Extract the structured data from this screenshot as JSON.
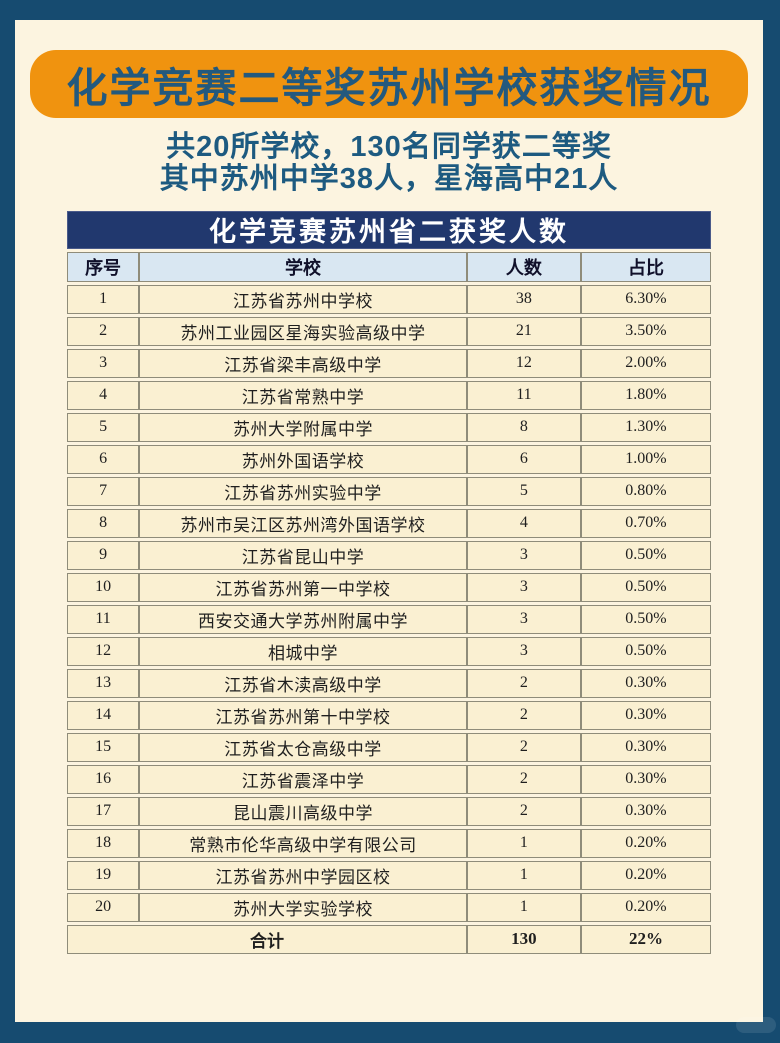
{
  "page": {
    "background_color": "#164b70",
    "card_color": "#fcf4e0",
    "accent_orange": "#f0930f",
    "headline_blue": "#23597e",
    "table_title_navy": "#21386e",
    "header_row_blue": "#d9e7f2",
    "row_cream": "#faf0d2"
  },
  "header": {
    "title": "化学竞赛二等奖苏州学校获奖情况",
    "subtitle_line1": "共20所学校，130名同学获二等奖",
    "subtitle_line2": "其中苏州中学38人，星海高中21人"
  },
  "table": {
    "title": "化学竞赛苏州省二获奖人数",
    "columns": [
      "序号",
      "学校",
      "人数",
      "占比"
    ],
    "rows": [
      [
        "1",
        "江苏省苏州中学校",
        "38",
        "6.30%"
      ],
      [
        "2",
        "苏州工业园区星海实验高级中学",
        "21",
        "3.50%"
      ],
      [
        "3",
        "江苏省梁丰高级中学",
        "12",
        "2.00%"
      ],
      [
        "4",
        "江苏省常熟中学",
        "11",
        "1.80%"
      ],
      [
        "5",
        "苏州大学附属中学",
        "8",
        "1.30%"
      ],
      [
        "6",
        "苏州外国语学校",
        "6",
        "1.00%"
      ],
      [
        "7",
        "江苏省苏州实验中学",
        "5",
        "0.80%"
      ],
      [
        "8",
        "苏州市吴江区苏州湾外国语学校",
        "4",
        "0.70%"
      ],
      [
        "9",
        "江苏省昆山中学",
        "3",
        "0.50%"
      ],
      [
        "10",
        "江苏省苏州第一中学校",
        "3",
        "0.50%"
      ],
      [
        "11",
        "西安交通大学苏州附属中学",
        "3",
        "0.50%"
      ],
      [
        "12",
        "相城中学",
        "3",
        "0.50%"
      ],
      [
        "13",
        "江苏省木渎高级中学",
        "2",
        "0.30%"
      ],
      [
        "14",
        "江苏省苏州第十中学校",
        "2",
        "0.30%"
      ],
      [
        "15",
        "江苏省太仓高级中学",
        "2",
        "0.30%"
      ],
      [
        "16",
        "江苏省震泽中学",
        "2",
        "0.30%"
      ],
      [
        "17",
        "昆山震川高级中学",
        "2",
        "0.30%"
      ],
      [
        "18",
        "常熟市伦华高级中学有限公司",
        "1",
        "0.20%"
      ],
      [
        "19",
        "江苏省苏州中学园区校",
        "1",
        "0.20%"
      ],
      [
        "20",
        "苏州大学实验学校",
        "1",
        "0.20%"
      ]
    ],
    "total_row": {
      "label": "合计",
      "count": "130",
      "percent": "22%"
    }
  },
  "chart_data": {
    "type": "table",
    "title": "化学竞赛苏州省二获奖人数",
    "categories": [
      "江苏省苏州中学校",
      "苏州工业园区星海实验高级中学",
      "江苏省梁丰高级中学",
      "江苏省常熟中学",
      "苏州大学附属中学",
      "苏州外国语学校",
      "江苏省苏州实验中学",
      "苏州市吴江区苏州湾外国语学校",
      "江苏省昆山中学",
      "江苏省苏州第一中学校",
      "西安交通大学苏州附属中学",
      "相城中学",
      "江苏省木渎高级中学",
      "江苏省苏州第十中学校",
      "江苏省太仓高级中学",
      "江苏省震泽中学",
      "昆山震川高级中学",
      "常熟市伦华高级中学有限公司",
      "江苏省苏州中学园区校",
      "苏州大学实验学校"
    ],
    "series": [
      {
        "name": "人数",
        "values": [
          38,
          21,
          12,
          11,
          8,
          6,
          5,
          4,
          3,
          3,
          3,
          3,
          2,
          2,
          2,
          2,
          2,
          1,
          1,
          1
        ]
      },
      {
        "name": "占比",
        "values": [
          "6.30%",
          "3.50%",
          "2.00%",
          "1.80%",
          "1.30%",
          "1.00%",
          "0.80%",
          "0.70%",
          "0.50%",
          "0.50%",
          "0.50%",
          "0.50%",
          "0.30%",
          "0.30%",
          "0.30%",
          "0.30%",
          "0.30%",
          "0.20%",
          "0.20%",
          "0.20%"
        ]
      }
    ],
    "total": {
      "人数": 130,
      "占比": "22%"
    }
  }
}
